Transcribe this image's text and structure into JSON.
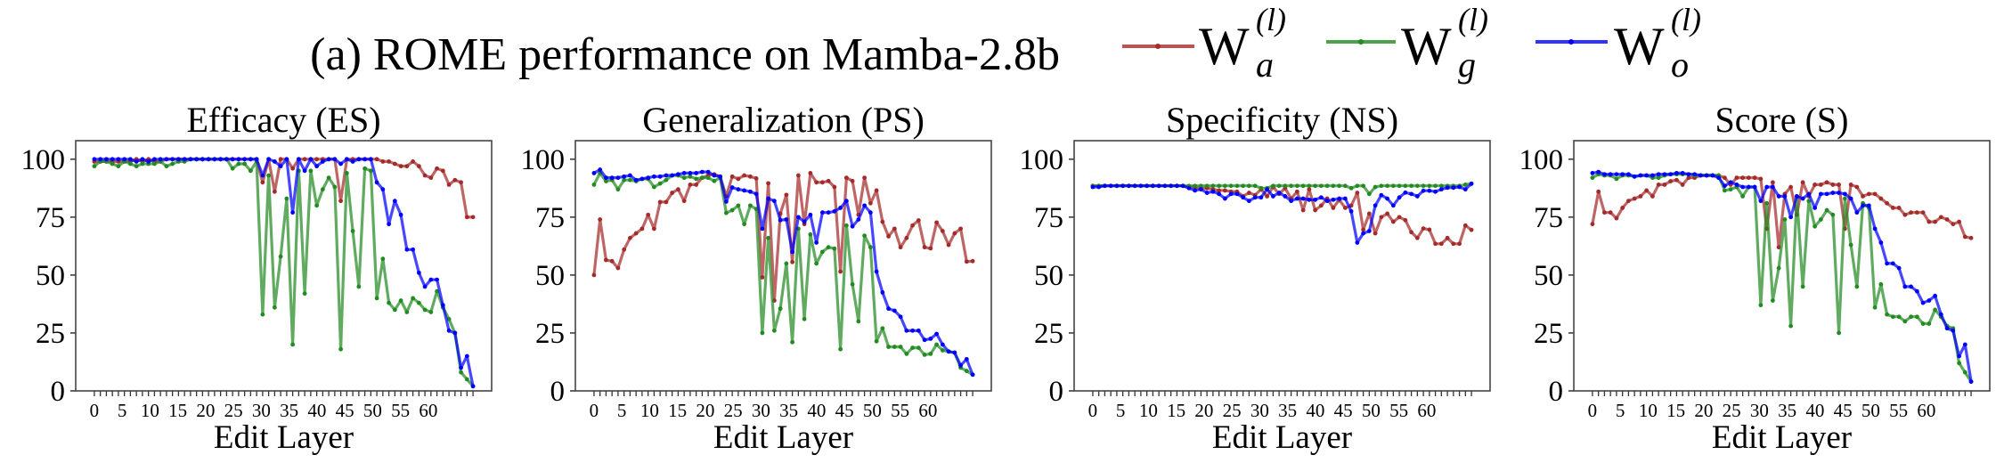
{
  "figure": {
    "title": "(a) ROME performance on Mamba-2.8b"
  },
  "legend": [
    {
      "symbol": "W",
      "subscript": "a",
      "superscript": "(l)",
      "color": "#a52a2a"
    },
    {
      "symbol": "W",
      "subscript": "g",
      "superscript": "(l)",
      "color": "#228b22"
    },
    {
      "symbol": "W",
      "subscript": "o",
      "superscript": "(l)",
      "color": "#0000ff"
    }
  ],
  "chart_data": [
    {
      "type": "line",
      "title": "Efficacy (ES)",
      "xlabel": "Edit Layer",
      "ylabel": "",
      "x_range": [
        0,
        63
      ],
      "ylim": [
        0,
        108
      ],
      "yticks": [
        "0",
        "25",
        "50",
        "75",
        "100"
      ],
      "xtick_labels": [
        "0",
        "5",
        "10",
        "15",
        "20",
        "25",
        "30",
        "35",
        "40",
        "45",
        "50",
        "55",
        "60"
      ],
      "grid": false,
      "series": [
        {
          "name": "W_a^(l)",
          "color": "#a52a2a",
          "values": [
            99,
            99,
            99,
            99,
            99,
            99,
            99,
            100,
            99,
            100,
            99,
            99,
            100,
            100,
            100,
            100,
            100,
            100,
            100,
            100,
            100,
            100,
            100,
            100,
            100,
            100,
            100,
            100,
            90,
            100,
            86,
            100,
            100,
            96,
            100,
            100,
            100,
            100,
            100,
            100,
            100,
            82,
            100,
            100,
            100,
            100,
            100,
            100,
            99,
            99,
            98,
            97,
            97,
            99,
            97,
            93,
            92,
            96,
            95,
            89,
            91,
            90,
            75,
            75
          ]
        },
        {
          "name": "W_g^(l)",
          "color": "#228b22",
          "values": [
            97,
            99,
            99,
            98,
            97,
            99,
            98,
            97,
            98,
            98,
            98,
            99,
            97,
            98,
            99,
            99,
            100,
            100,
            100,
            100,
            100,
            100,
            100,
            96,
            98,
            98,
            95,
            99,
            33,
            93,
            36,
            58,
            83,
            20,
            95,
            42,
            95,
            80,
            87,
            92,
            88,
            18,
            94,
            69,
            45,
            96,
            95,
            40,
            57,
            38,
            35,
            39,
            34,
            40,
            38,
            35,
            34,
            43,
            36,
            31,
            25,
            8,
            5,
            2
          ]
        },
        {
          "name": "W_o^(l)",
          "color": "#0000ff",
          "values": [
            100,
            100,
            100,
            100,
            100,
            100,
            100,
            99,
            100,
            99,
            100,
            100,
            100,
            100,
            100,
            100,
            100,
            100,
            100,
            100,
            100,
            100,
            100,
            100,
            100,
            100,
            100,
            100,
            93,
            100,
            99,
            97,
            100,
            77,
            100,
            95,
            100,
            97,
            99,
            100,
            100,
            98,
            100,
            99,
            100,
            100,
            100,
            90,
            87,
            72,
            82,
            76,
            61,
            61,
            51,
            45,
            48,
            48,
            37,
            26,
            25,
            10,
            15,
            2
          ]
        }
      ]
    },
    {
      "type": "line",
      "title": "Generalization (PS)",
      "xlabel": "Edit Layer",
      "ylabel": "",
      "x_range": [
        0,
        63
      ],
      "ylim": [
        0,
        108
      ],
      "yticks": [
        "0",
        "25",
        "50",
        "75",
        "100"
      ],
      "xtick_labels": [
        "0",
        "5",
        "10",
        "15",
        "20",
        "25",
        "30",
        "35",
        "40",
        "45",
        "50",
        "55",
        "60"
      ],
      "grid": false,
      "series": [
        {
          "name": "W_a^(l)",
          "color": "#a52a2a",
          "values": [
            50,
            74,
            56.5,
            56,
            53,
            61,
            66,
            68,
            70,
            76,
            70,
            81.5,
            81.5,
            85.5,
            87,
            82,
            89,
            89,
            92,
            93,
            93.5,
            92.5,
            84,
            92.5,
            91.5,
            93,
            92.5,
            91.7,
            49,
            89.6,
            39,
            76.5,
            84.6,
            55.6,
            93,
            72,
            94,
            90,
            90,
            90.6,
            88,
            51.5,
            92,
            90.6,
            76,
            92,
            81,
            86.5,
            73,
            66.7,
            70,
            62,
            66,
            71.4,
            73.6,
            62,
            61.5,
            72.7,
            69,
            63,
            68,
            70,
            55.8,
            56
          ]
        },
        {
          "name": "W_g^(l)",
          "color": "#228b22",
          "values": [
            89,
            94,
            90.5,
            91,
            87,
            91,
            91,
            90.5,
            91.5,
            91.5,
            88,
            89.5,
            91,
            93,
            93,
            92,
            92.5,
            91.5,
            92,
            92,
            90.6,
            92,
            76.8,
            78,
            80,
            72,
            80,
            78.5,
            25,
            66,
            26,
            35.5,
            55,
            21,
            70,
            31,
            67.5,
            55,
            60,
            62,
            61.4,
            18,
            71.4,
            46,
            30,
            67,
            62,
            21.4,
            27,
            19,
            19,
            19,
            16,
            18.6,
            18.6,
            15.6,
            16,
            20,
            17.5,
            17,
            16.5,
            10,
            8.6,
            7
          ]
        },
        {
          "name": "W_o^(l)",
          "color": "#0000ff",
          "values": [
            94,
            95.5,
            92,
            92,
            92,
            92.5,
            93,
            91,
            91.5,
            92,
            92.5,
            92.5,
            93,
            93,
            93.5,
            94,
            94,
            94,
            94.5,
            94.5,
            93,
            92.5,
            81.7,
            87.8,
            87,
            86.5,
            86,
            85,
            70,
            83,
            82,
            73.7,
            74,
            60,
            75,
            73,
            76,
            64,
            77,
            77,
            77.5,
            79,
            82,
            71,
            74,
            80,
            77,
            51.5,
            42.5,
            35.5,
            34.6,
            32,
            26,
            26,
            26,
            22,
            22.5,
            24.6,
            20,
            17,
            16.5,
            11,
            13.7,
            7
          ]
        }
      ]
    },
    {
      "type": "line",
      "title": "Specificity (NS)",
      "xlabel": "Edit Layer",
      "ylabel": "",
      "x_range": [
        0,
        63
      ],
      "ylim": [
        0,
        108
      ],
      "yticks": [
        "0",
        "25",
        "50",
        "75",
        "100"
      ],
      "xtick_labels": [
        "0",
        "5",
        "10",
        "15",
        "20",
        "25",
        "30",
        "35",
        "40",
        "45",
        "50",
        "55",
        "60"
      ],
      "grid": false,
      "series": [
        {
          "name": "W_a^(l)",
          "color": "#a52a2a",
          "values": [
            88.5,
            88.5,
            88.5,
            88.5,
            88.5,
            88.5,
            88.5,
            88.5,
            88.5,
            88.5,
            88.5,
            88.5,
            88.5,
            88.5,
            88.5,
            88.5,
            88,
            88,
            87.5,
            87.5,
            87,
            86.5,
            86.5,
            86,
            86,
            84,
            85.5,
            84.5,
            87,
            84,
            88,
            85,
            87.5,
            83,
            86,
            78,
            87,
            78,
            80,
            83,
            79,
            82.5,
            79,
            80,
            85.5,
            69.6,
            76.5,
            68,
            75,
            76.5,
            73,
            75,
            73.7,
            68.5,
            66,
            70.1,
            69.6,
            63.5,
            63.5,
            66,
            63.5,
            63.5,
            71.4,
            69.5
          ]
        },
        {
          "name": "W_g^(l)",
          "color": "#228b22",
          "values": [
            88.5,
            88.5,
            88.5,
            88.5,
            88.5,
            88.5,
            88.5,
            88.5,
            88.5,
            88.5,
            88.5,
            88.5,
            88.5,
            88.5,
            88.5,
            88.5,
            88.5,
            88.5,
            88.5,
            88.5,
            88.5,
            88.5,
            88.5,
            88.5,
            88.5,
            88.5,
            88.5,
            88.5,
            87.5,
            87.5,
            88.5,
            88.5,
            88.5,
            88.5,
            88.5,
            88.5,
            88.5,
            88.5,
            88.5,
            88.5,
            88.5,
            88.5,
            88.5,
            87.5,
            88.5,
            88.5,
            85,
            88,
            88.5,
            88.5,
            88.5,
            88.5,
            88.5,
            88.5,
            88.5,
            88.5,
            88.5,
            88.5,
            88.5,
            88.5,
            88.5,
            88.5,
            89,
            89.5
          ]
        },
        {
          "name": "W_o^(l)",
          "color": "#0000ff",
          "values": [
            88,
            88,
            88.5,
            88.5,
            88.5,
            88.5,
            88.5,
            88.5,
            88.5,
            88.5,
            88.5,
            88.5,
            88.5,
            88.5,
            88.5,
            88.5,
            87.5,
            86.5,
            87,
            85.5,
            86,
            85,
            83,
            85,
            85,
            83.5,
            82,
            83.5,
            83.5,
            87,
            84,
            85.5,
            84,
            82,
            83,
            83,
            82.5,
            82.5,
            83.5,
            82,
            82.5,
            83,
            83,
            77.5,
            64,
            68,
            69,
            80,
            84.5,
            83,
            80,
            83.5,
            85.6,
            85,
            84,
            86.4,
            86.4,
            86,
            87,
            87.7,
            87.7,
            88,
            87,
            89.4
          ]
        }
      ]
    },
    {
      "type": "line",
      "title": "Score (S)",
      "xlabel": "Edit Layer",
      "ylabel": "",
      "x_range": [
        0,
        63
      ],
      "ylim": [
        0,
        108
      ],
      "yticks": [
        "0",
        "25",
        "50",
        "75",
        "100"
      ],
      "xtick_labels": [
        "0",
        "5",
        "10",
        "15",
        "20",
        "25",
        "30",
        "35",
        "40",
        "45",
        "50",
        "55",
        "60"
      ],
      "grid": false,
      "series": [
        {
          "name": "W_a^(l)",
          "color": "#a52a2a",
          "values": [
            72,
            86,
            77,
            77,
            74.5,
            79,
            82,
            83,
            84,
            86.5,
            84,
            89,
            89,
            90.5,
            91,
            89,
            92,
            92,
            93,
            93,
            93,
            93,
            92,
            89,
            92,
            92,
            92,
            92,
            91.5,
            70,
            90,
            62,
            85,
            88,
            76,
            90,
            84,
            89,
            89,
            90,
            89,
            89,
            70,
            89,
            88,
            84,
            85,
            85,
            83,
            81,
            79,
            79,
            76,
            77,
            77,
            77,
            73,
            73,
            75,
            74,
            72,
            73,
            66.5,
            66
          ]
        },
        {
          "name": "W_g^(l)",
          "color": "#228b22",
          "values": [
            92,
            93.5,
            93,
            93,
            91.5,
            93,
            93,
            92.5,
            93,
            93,
            92,
            92,
            93,
            93.5,
            93.5,
            93.5,
            93.5,
            93,
            93,
            93,
            93,
            93,
            86.5,
            87,
            88,
            84,
            88,
            88,
            37,
            81,
            39,
            53,
            74,
            28,
            84,
            45,
            82,
            71,
            74,
            78,
            76,
            25,
            83,
            63,
            45,
            81,
            79,
            36,
            46,
            33,
            32,
            32,
            30,
            32,
            32,
            29,
            29,
            35,
            32,
            28,
            27,
            12,
            8,
            4
          ]
        },
        {
          "name": "W_o^(l)",
          "color": "#0000ff",
          "values": [
            94,
            94.5,
            93.5,
            93.5,
            93.5,
            93.5,
            93.5,
            92.5,
            93,
            93,
            93,
            93.5,
            93.5,
            93.5,
            94,
            94,
            93.5,
            93.5,
            93,
            93,
            93,
            92,
            88.5,
            90,
            89,
            88,
            88,
            88,
            82,
            88,
            88,
            84,
            84,
            75,
            84,
            83,
            85,
            79,
            85,
            85,
            85.5,
            85.5,
            85,
            83,
            77,
            80,
            80,
            70,
            64,
            55,
            55,
            53,
            45,
            45,
            43,
            38,
            39,
            41,
            33,
            27,
            26,
            15,
            20,
            4
          ]
        }
      ]
    }
  ]
}
